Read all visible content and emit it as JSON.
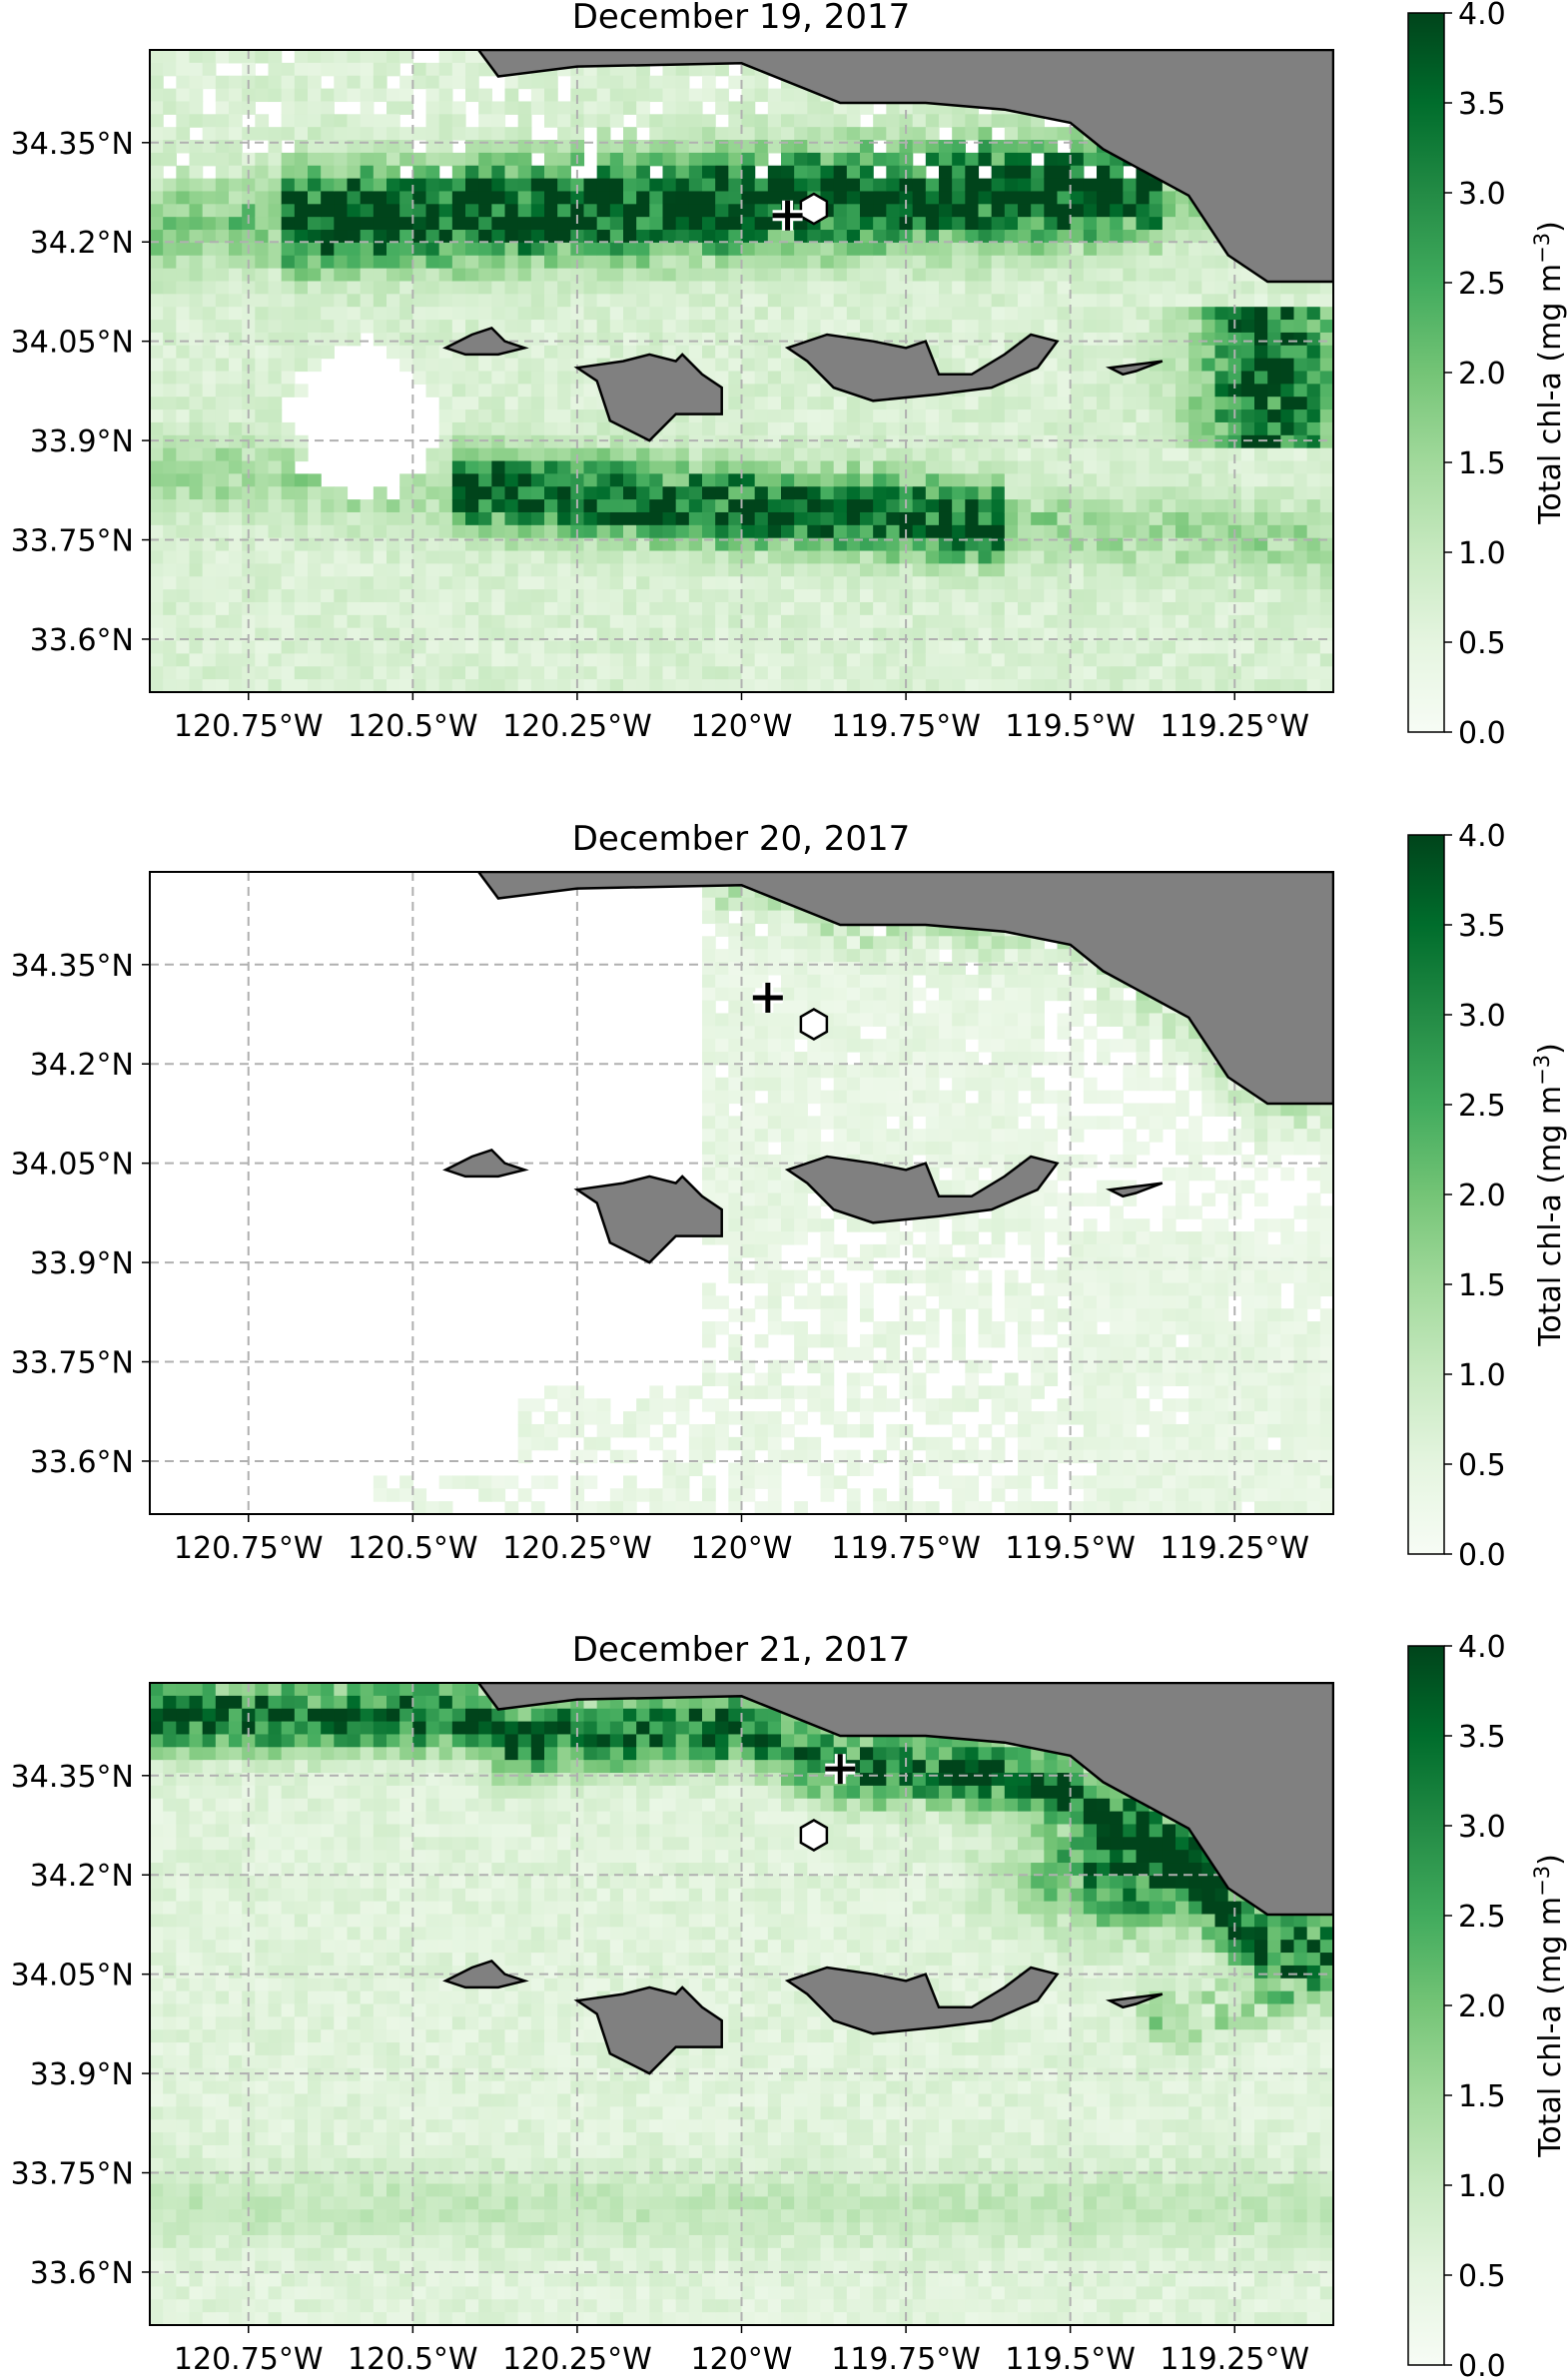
{
  "chart_data": [
    {
      "type": "heatmap",
      "title": "December 19, 2017",
      "x_ticks": [
        "120.75°W",
        "120.5°W",
        "120.25°W",
        "120°W",
        "119.75°W",
        "119.5°W",
        "119.25°W"
      ],
      "x_tick_values": [
        -120.75,
        -120.5,
        -120.25,
        -120.0,
        -119.75,
        -119.5,
        -119.25
      ],
      "y_ticks": [
        "34.35°N",
        "34.2°N",
        "34.05°N",
        "33.9°N",
        "33.75°N",
        "33.6°N"
      ],
      "y_tick_values": [
        34.35,
        34.2,
        34.05,
        33.9,
        33.75,
        33.6
      ],
      "xlim": [
        -120.9,
        -119.1
      ],
      "ylim": [
        33.52,
        34.49
      ],
      "grid": true,
      "colorbar": {
        "label": "Total chl-a (mg m",
        "label_exponent": "−3",
        "label_close": ")",
        "range": [
          0.0,
          4.0
        ],
        "ticks": [
          "0.0",
          "0.5",
          "1.0",
          "1.5",
          "2.0",
          "2.5",
          "3.0",
          "3.5",
          "4.0"
        ],
        "colormap": "Greens"
      },
      "pattern": "bloom",
      "markers": {
        "cross": {
          "lon": -119.93,
          "lat": 34.24
        },
        "hexagon": {
          "lon": -119.89,
          "lat": 34.25
        }
      }
    },
    {
      "type": "heatmap",
      "title": "December 20, 2017",
      "x_ticks": [
        "120.75°W",
        "120.5°W",
        "120.25°W",
        "120°W",
        "119.75°W",
        "119.5°W",
        "119.25°W"
      ],
      "x_tick_values": [
        -120.75,
        -120.5,
        -120.25,
        -120.0,
        -119.75,
        -119.5,
        -119.25
      ],
      "y_ticks": [
        "34.35°N",
        "34.2°N",
        "34.05°N",
        "33.9°N",
        "33.75°N",
        "33.6°N"
      ],
      "y_tick_values": [
        34.35,
        34.2,
        34.05,
        33.9,
        33.75,
        33.6
      ],
      "xlim": [
        -120.9,
        -119.1
      ],
      "ylim": [
        33.52,
        34.49
      ],
      "grid": true,
      "colorbar": {
        "label": "Total chl-a (mg m",
        "label_exponent": "−3",
        "label_close": ")",
        "range": [
          0.0,
          4.0
        ],
        "ticks": [
          "0.0",
          "0.5",
          "1.0",
          "1.5",
          "2.0",
          "2.5",
          "3.0",
          "3.5",
          "4.0"
        ],
        "colormap": "Greens"
      },
      "pattern": "sparse",
      "markers": {
        "cross": {
          "lon": -119.96,
          "lat": 34.3
        },
        "hexagon": {
          "lon": -119.89,
          "lat": 34.26
        }
      }
    },
    {
      "type": "heatmap",
      "title": "December 21, 2017",
      "x_ticks": [
        "120.75°W",
        "120.5°W",
        "120.25°W",
        "120°W",
        "119.75°W",
        "119.5°W",
        "119.25°W"
      ],
      "x_tick_values": [
        -120.75,
        -120.5,
        -120.25,
        -120.0,
        -119.75,
        -119.5,
        -119.25
      ],
      "y_ticks": [
        "34.35°N",
        "34.2°N",
        "34.05°N",
        "33.9°N",
        "33.75°N",
        "33.6°N"
      ],
      "y_tick_values": [
        34.35,
        34.2,
        34.05,
        33.9,
        33.75,
        33.6
      ],
      "xlim": [
        -120.9,
        -119.1
      ],
      "ylim": [
        33.52,
        34.49
      ],
      "grid": true,
      "colorbar": {
        "label": "Total chl-a (mg m",
        "label_exponent": "−3",
        "label_close": ")",
        "range": [
          0.0,
          4.0
        ],
        "ticks": [
          "0.0",
          "0.5",
          "1.0",
          "1.5",
          "2.0",
          "2.5",
          "3.0",
          "3.5",
          "4.0"
        ],
        "colormap": "Greens"
      },
      "pattern": "coastal",
      "markers": {
        "cross": {
          "lon": -119.85,
          "lat": 34.36
        },
        "hexagon": {
          "lon": -119.89,
          "lat": 34.26
        }
      }
    }
  ],
  "land": {
    "mainland": [
      [
        -120.4,
        34.49
      ],
      [
        -120.37,
        34.45
      ],
      [
        -120.25,
        34.465
      ],
      [
        -120.0,
        34.47
      ],
      [
        -119.85,
        34.41
      ],
      [
        -119.72,
        34.41
      ],
      [
        -119.6,
        34.4
      ],
      [
        -119.5,
        34.38
      ],
      [
        -119.45,
        34.34
      ],
      [
        -119.32,
        34.27
      ],
      [
        -119.26,
        34.18
      ],
      [
        -119.2,
        34.14
      ],
      [
        -119.1,
        34.14
      ],
      [
        -119.1,
        34.49
      ]
    ],
    "islands": [
      [
        [
          -120.45,
          34.04
        ],
        [
          -120.41,
          34.06
        ],
        [
          -120.38,
          34.07
        ],
        [
          -120.36,
          34.05
        ],
        [
          -120.33,
          34.04
        ],
        [
          -120.37,
          34.03
        ],
        [
          -120.42,
          34.03
        ]
      ],
      [
        [
          -120.25,
          34.01
        ],
        [
          -120.18,
          34.02
        ],
        [
          -120.14,
          34.03
        ],
        [
          -120.1,
          34.02
        ],
        [
          -120.09,
          34.03
        ],
        [
          -120.06,
          34.0
        ],
        [
          -120.03,
          33.98
        ],
        [
          -120.03,
          33.94
        ],
        [
          -120.1,
          33.94
        ],
        [
          -120.14,
          33.9
        ],
        [
          -120.2,
          33.93
        ],
        [
          -120.22,
          33.99
        ]
      ],
      [
        [
          -119.93,
          34.04
        ],
        [
          -119.87,
          34.06
        ],
        [
          -119.8,
          34.05
        ],
        [
          -119.75,
          34.04
        ],
        [
          -119.72,
          34.05
        ],
        [
          -119.7,
          34.0
        ],
        [
          -119.65,
          34.0
        ],
        [
          -119.6,
          34.03
        ],
        [
          -119.56,
          34.06
        ],
        [
          -119.52,
          34.05
        ],
        [
          -119.55,
          34.01
        ],
        [
          -119.62,
          33.98
        ],
        [
          -119.7,
          33.97
        ],
        [
          -119.8,
          33.96
        ],
        [
          -119.86,
          33.98
        ],
        [
          -119.9,
          34.02
        ]
      ],
      [
        [
          -119.44,
          34.01
        ],
        [
          -119.4,
          34.015
        ],
        [
          -119.36,
          34.02
        ],
        [
          -119.4,
          34.005
        ],
        [
          -119.42,
          34.0
        ]
      ]
    ]
  }
}
